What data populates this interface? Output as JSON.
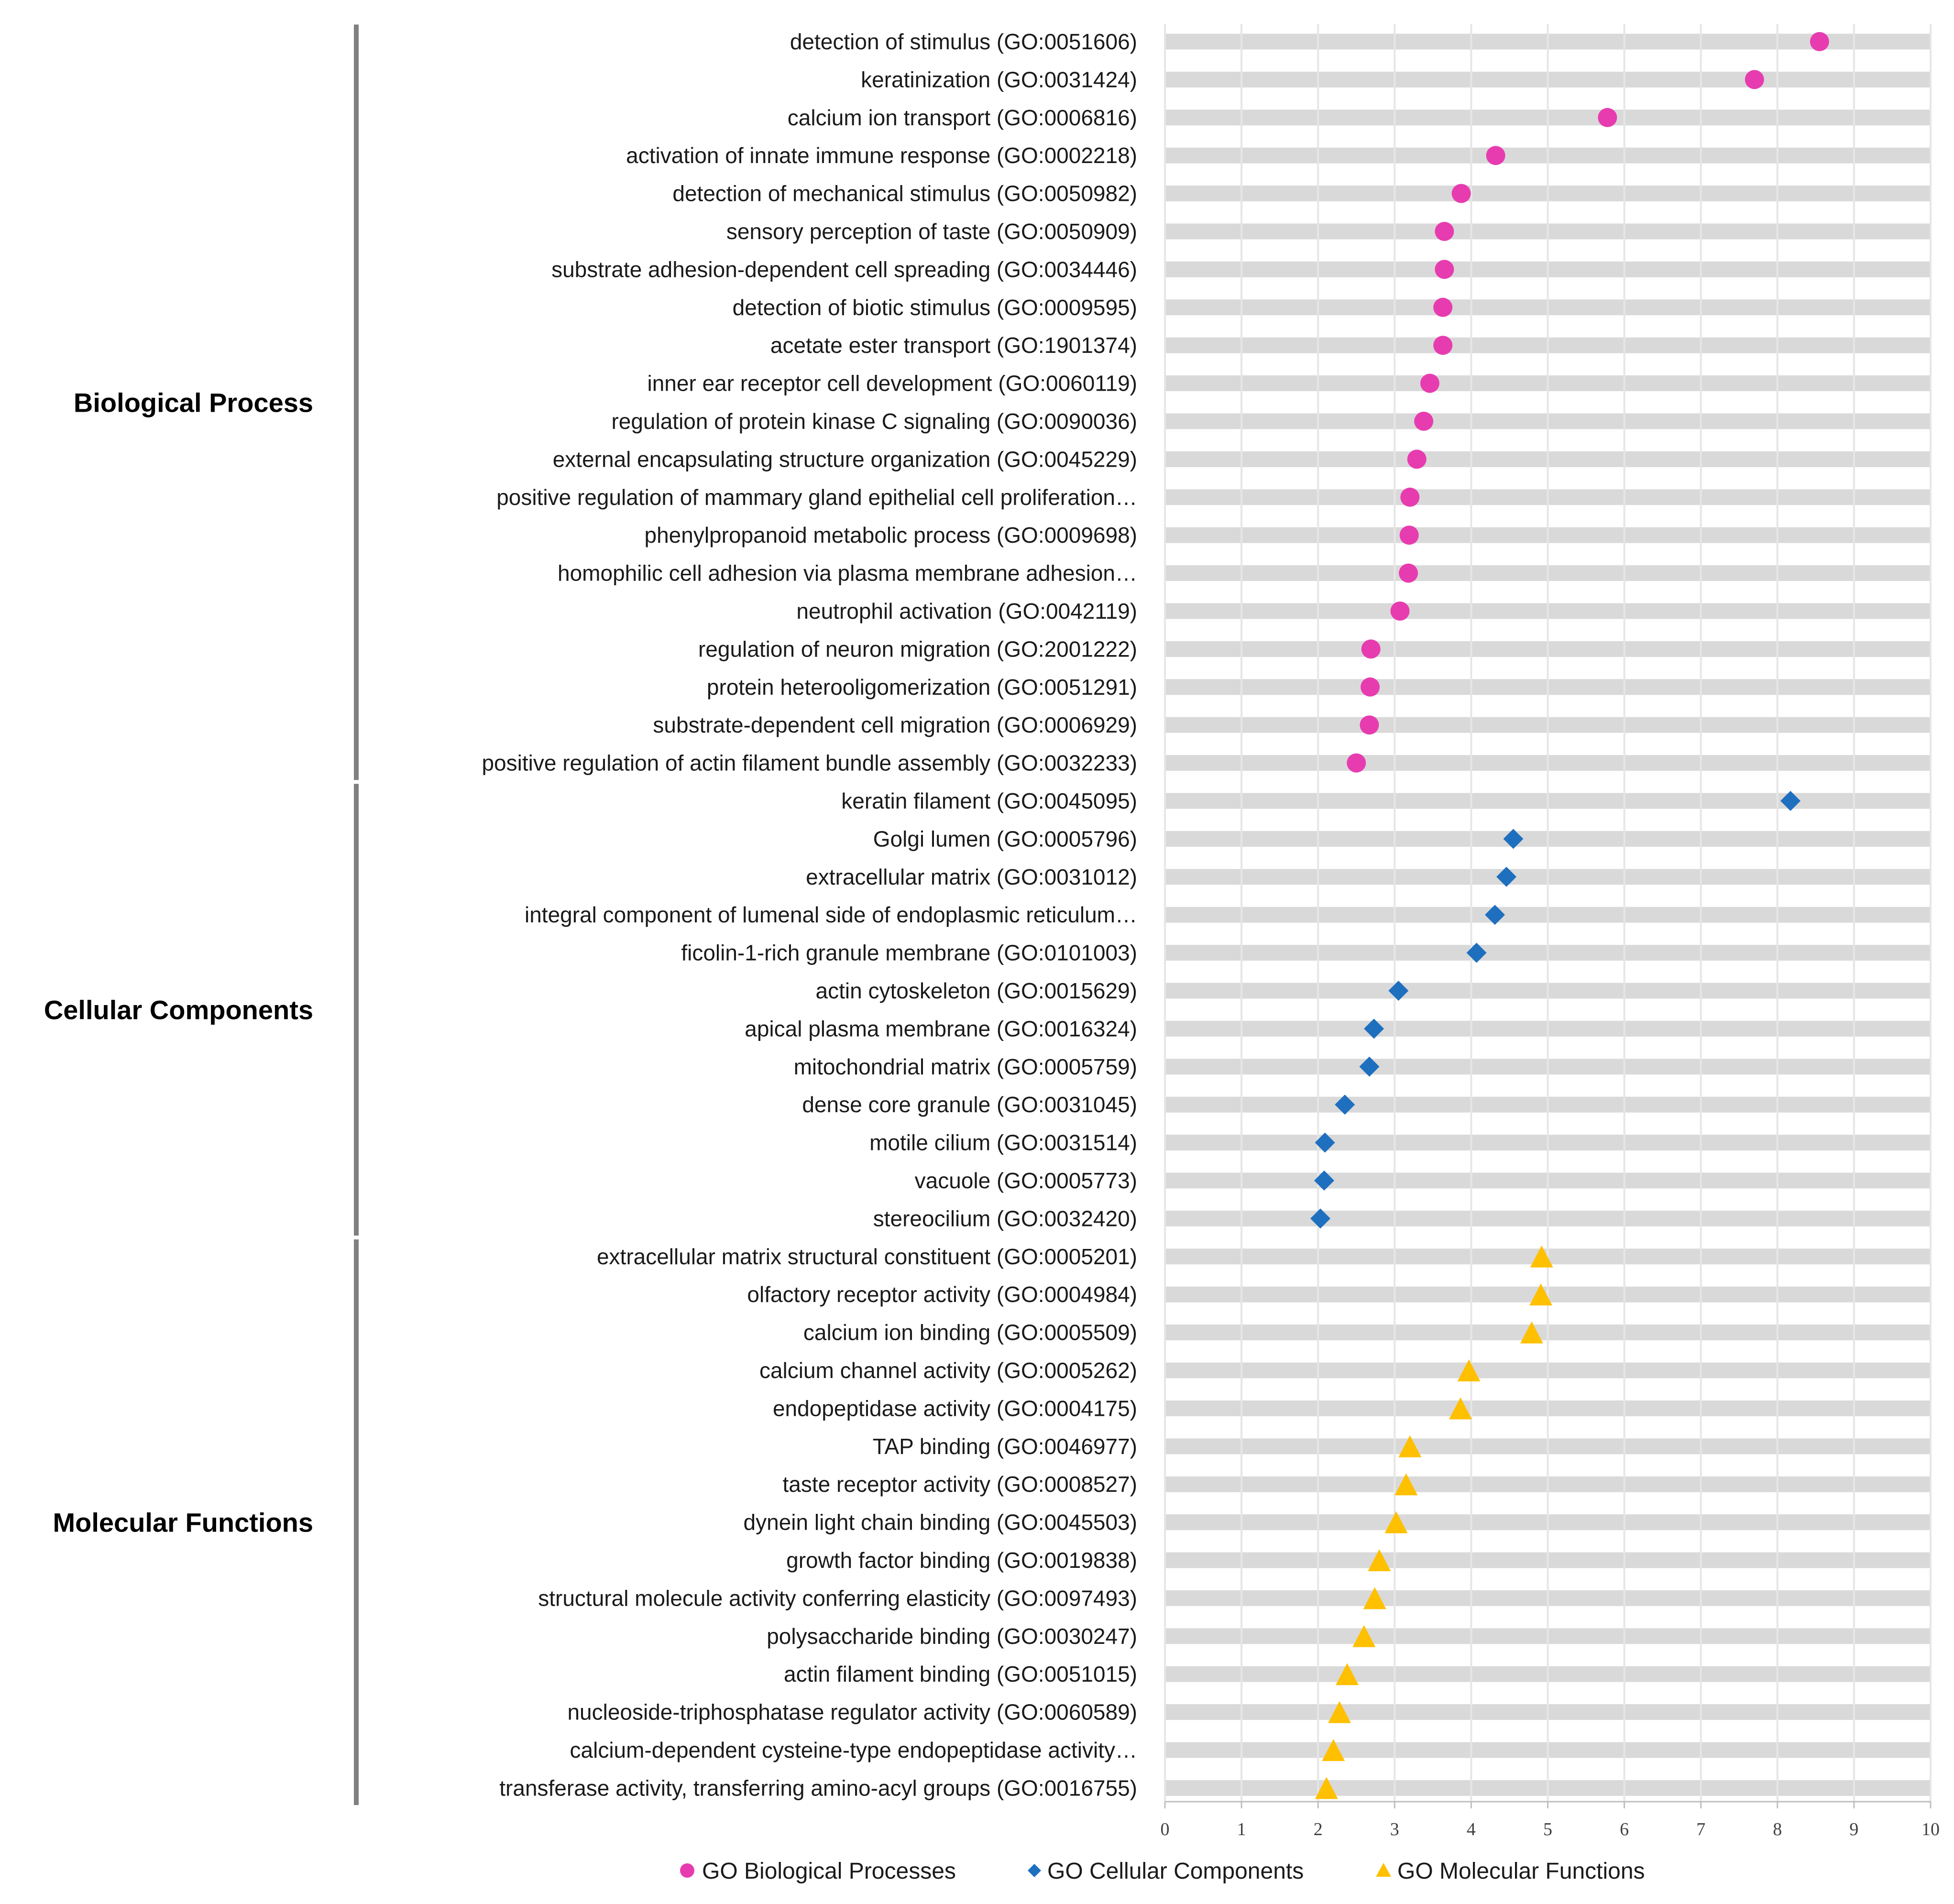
{
  "chart_data": {
    "type": "scatter",
    "orientation": "horizontal-dot-plot",
    "title": "",
    "xlabel": "",
    "ylabel": "",
    "xlim": [
      0,
      10
    ],
    "xticks": [
      "0",
      "1",
      "2",
      "3",
      "4",
      "5",
      "6",
      "7",
      "8",
      "9",
      "10"
    ],
    "grid": true,
    "legend_position": "bottom",
    "series": [
      {
        "name": "GO Biological Processes",
        "group_label": "Biological Process",
        "color": "#E73CB0",
        "marker": "circle",
        "categories": [
          "detection of stimulus (GO:0051606)",
          "keratinization (GO:0031424)",
          "calcium ion transport (GO:0006816)",
          "activation of innate immune response (GO:0002218)",
          "detection of mechanical stimulus (GO:0050982)",
          "sensory perception of taste (GO:0050909)",
          "substrate adhesion-dependent cell spreading (GO:0034446)",
          "detection of biotic stimulus (GO:0009595)",
          "acetate ester transport (GO:1901374)",
          "inner ear receptor cell development (GO:0060119)",
          "regulation of protein kinase C signaling (GO:0090036)",
          "external encapsulating structure organization (GO:0045229)",
          "positive regulation of mammary gland epithelial cell proliferation…",
          "phenylpropanoid metabolic process (GO:0009698)",
          "homophilic cell adhesion via plasma membrane adhesion…",
          "neutrophil activation (GO:0042119)",
          "regulation of neuron migration (GO:2001222)",
          "protein heterooligomerization (GO:0051291)",
          "substrate-dependent cell migration (GO:0006929)",
          "positive regulation of actin filament bundle assembly (GO:0032233)"
        ],
        "values": [
          8.55,
          7.7,
          5.78,
          4.32,
          3.87,
          3.65,
          3.65,
          3.63,
          3.63,
          3.46,
          3.38,
          3.29,
          3.2,
          3.19,
          3.18,
          3.07,
          2.69,
          2.68,
          2.67,
          2.5
        ]
      },
      {
        "name": "GO Cellular Components",
        "group_label": "Cellular Components",
        "color": "#1F6FBF",
        "marker": "diamond",
        "categories": [
          "keratin filament (GO:0045095)",
          "Golgi lumen (GO:0005796)",
          "extracellular matrix (GO:0031012)",
          "integral component of lumenal side of endoplasmic reticulum…",
          "ficolin-1-rich granule membrane (GO:0101003)",
          "actin cytoskeleton (GO:0015629)",
          "apical plasma membrane (GO:0016324)",
          "mitochondrial matrix (GO:0005759)",
          "dense core granule (GO:0031045)",
          "motile cilium (GO:0031514)",
          "vacuole (GO:0005773)",
          "stereocilium (GO:0032420)"
        ],
        "values": [
          8.17,
          4.55,
          4.46,
          4.31,
          4.07,
          3.05,
          2.73,
          2.67,
          2.35,
          2.09,
          2.08,
          2.03
        ]
      },
      {
        "name": "GO Molecular Functions",
        "group_label": "Molecular Functions",
        "color": "#FFC000",
        "marker": "triangle",
        "categories": [
          "extracellular matrix structural constituent (GO:0005201)",
          "olfactory receptor activity (GO:0004984)",
          "calcium ion binding (GO:0005509)",
          "calcium channel activity (GO:0005262)",
          "endopeptidase activity (GO:0004175)",
          "TAP binding (GO:0046977)",
          "taste receptor activity (GO:0008527)",
          "dynein light chain binding (GO:0045503)",
          "growth factor binding (GO:0019838)",
          "structural molecule activity conferring elasticity (GO:0097493)",
          "polysaccharide binding (GO:0030247)",
          "actin filament binding (GO:0051015)",
          "nucleoside-triphosphatase regulator activity (GO:0060589)",
          "calcium-dependent cysteine-type endopeptidase activity…",
          "transferase activity, transferring amino-acyl groups (GO:0016755)"
        ],
        "values": [
          4.92,
          4.91,
          4.79,
          3.97,
          3.86,
          3.2,
          3.15,
          3.02,
          2.8,
          2.74,
          2.6,
          2.38,
          2.28,
          2.2,
          2.11
        ]
      }
    ]
  }
}
